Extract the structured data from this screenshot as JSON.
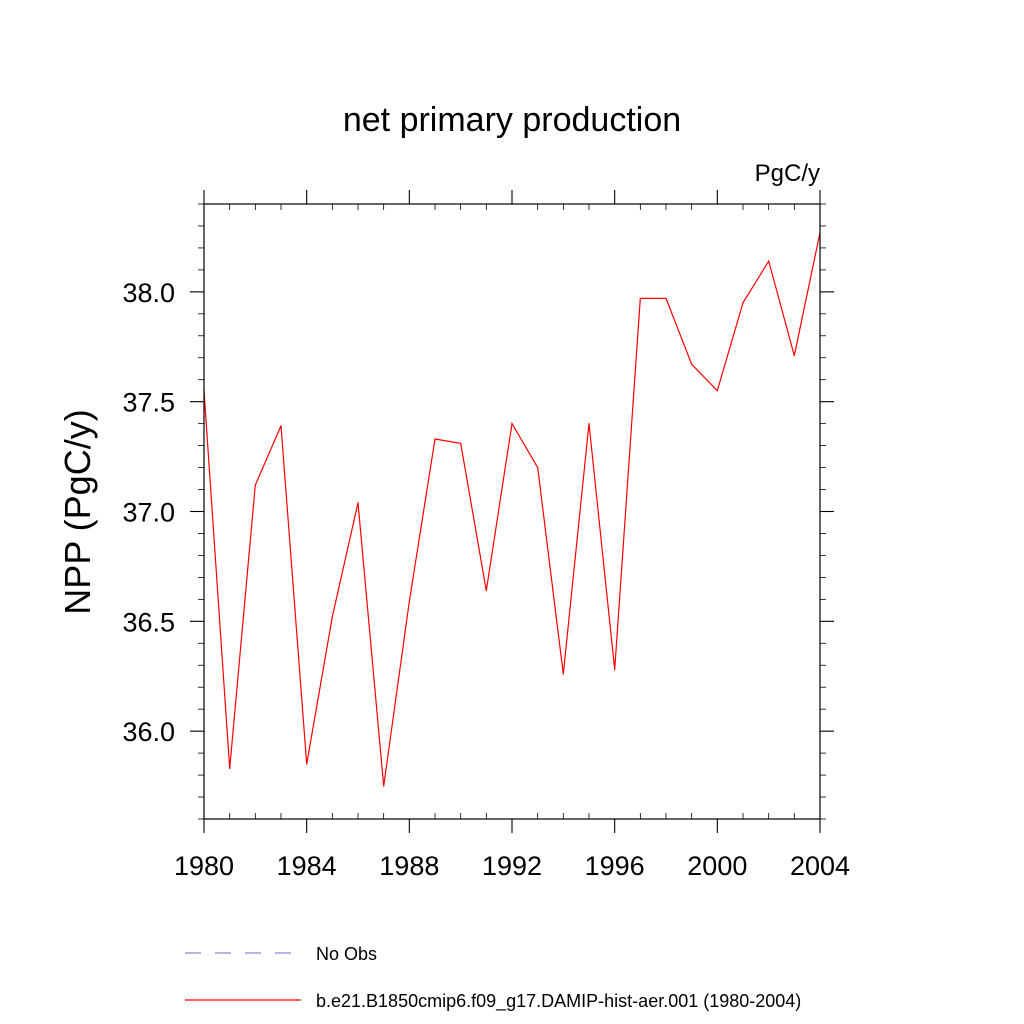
{
  "chart_data": {
    "type": "line",
    "title": "net primary production",
    "units_label": "PgC/y",
    "ylabel": "NPP  (PgC/y)",
    "xlabel": "",
    "xlim": [
      1980,
      2004
    ],
    "ylim": [
      35.6,
      38.4
    ],
    "x_major_ticks": [
      1980,
      1984,
      1988,
      1992,
      1996,
      2000,
      2004
    ],
    "x_tick_labels": [
      "1980",
      "1984",
      "1988",
      "1992",
      "1996",
      "2000",
      "2004"
    ],
    "y_major_ticks": [
      36.0,
      36.5,
      37.0,
      37.5,
      38.0
    ],
    "y_tick_labels": [
      "36.0",
      "36.5",
      "37.0",
      "37.5",
      "38.0"
    ],
    "grid": false,
    "legend_position": "bottom",
    "series": [
      {
        "name": "b.e21.B1850cmip6.f09_g17.DAMIP-hist-aer.001 (1980-2004)",
        "color": "#ff0000",
        "style": "solid",
        "x": [
          1980,
          1981,
          1982,
          1983,
          1984,
          1985,
          1986,
          1987,
          1988,
          1989,
          1990,
          1991,
          1992,
          1993,
          1994,
          1995,
          1996,
          1997,
          1998,
          1999,
          2000,
          2001,
          2002,
          2003,
          2004
        ],
        "values": [
          37.55,
          35.83,
          37.12,
          37.39,
          35.85,
          36.52,
          37.04,
          35.75,
          36.59,
          37.33,
          37.31,
          36.64,
          37.4,
          37.2,
          36.26,
          37.4,
          36.28,
          37.97,
          37.97,
          37.67,
          37.55,
          37.95,
          38.14,
          37.71,
          38.27
        ]
      }
    ],
    "legend": [
      {
        "label": "No Obs",
        "color": "#8a8ad8",
        "style": "dashed"
      },
      {
        "label": "b.e21.B1850cmip6.f09_g17.DAMIP-hist-aer.001 (1980-2004)",
        "color": "#ff0000",
        "style": "solid"
      }
    ]
  }
}
